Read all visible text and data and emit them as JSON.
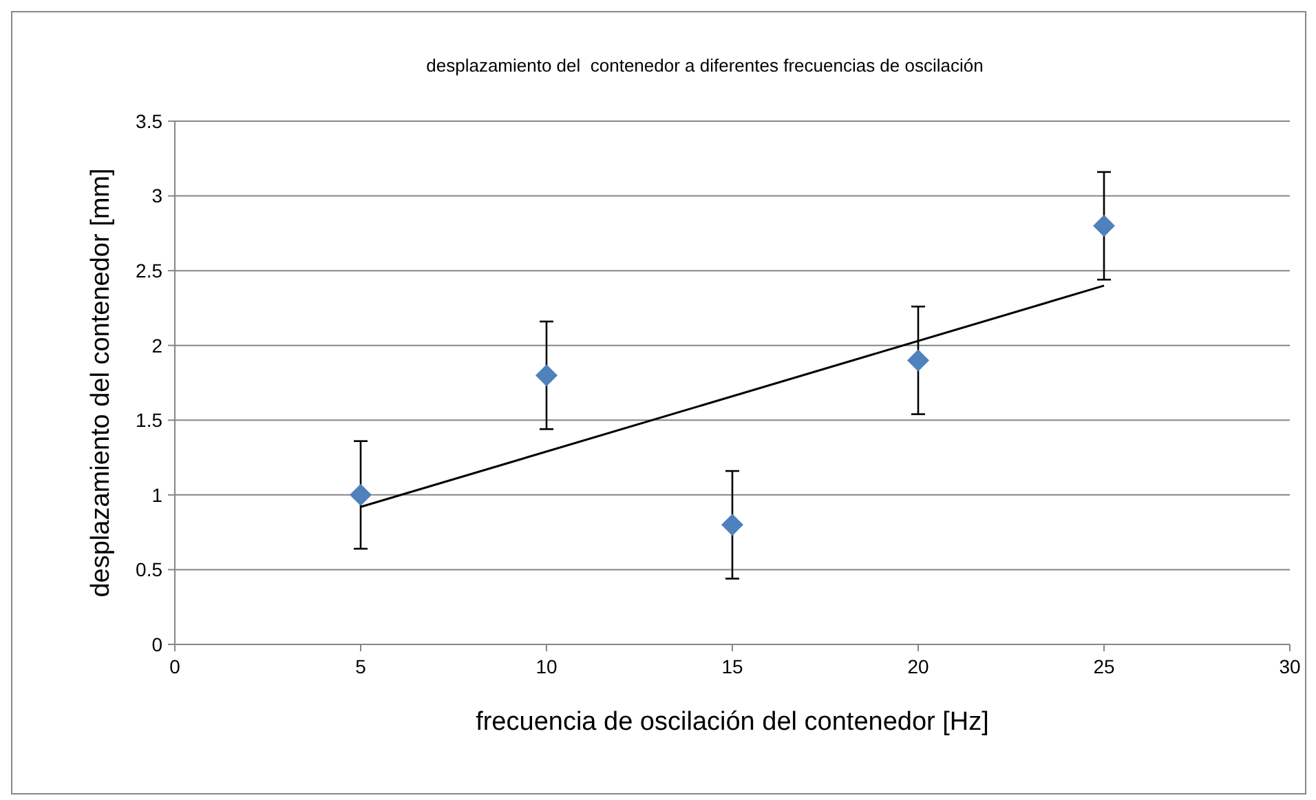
{
  "chart_data": {
    "type": "scatter",
    "title": "desplazamiento del  contenedor a diferentes frecuencias de oscilación",
    "xlabel": "frecuencia de oscilación del contenedor [Hz]",
    "ylabel": "desplazamiento del contenedor [mm]",
    "x": [
      5,
      10,
      15,
      20,
      25
    ],
    "series": [
      {
        "color": "#4f81bd",
        "marker": "diamond",
        "values": [
          1,
          1.8,
          0.8,
          1.9,
          2.8
        ],
        "errors": [
          0.36,
          0.36,
          0.36,
          0.36,
          0.36
        ]
      },
      {
        "type": "line",
        "color": "#000000",
        "marker": "none",
        "line_style": "solid",
        "x": [
          5,
          25
        ],
        "values": [
          0.92,
          2.4
        ]
      }
    ],
    "xlim": [
      0,
      30
    ],
    "xticks": [
      0,
      5,
      10,
      15,
      20,
      25,
      30
    ],
    "ylim": [
      0,
      3.5
    ],
    "yticks": [
      0,
      0.5,
      1,
      1.5,
      2,
      2.5,
      3,
      3.5
    ],
    "grid": "y"
  }
}
